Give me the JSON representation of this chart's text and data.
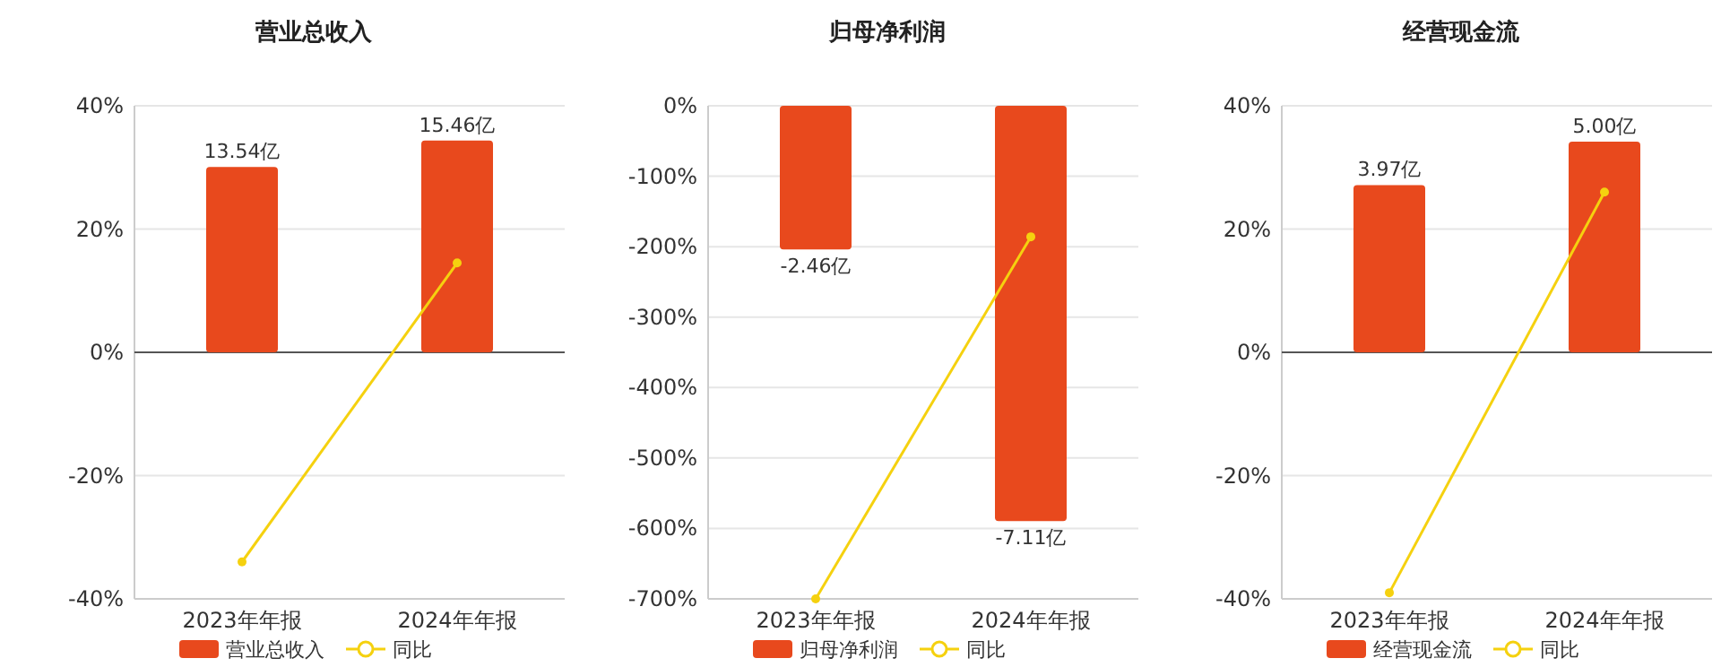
{
  "chart_data": [
    {
      "type": "bar",
      "title": "营业总收入",
      "categories": [
        "2023年年报",
        "2024年年报"
      ],
      "ylim": [
        -40,
        40
      ],
      "yticks": [
        {
          "value": -40,
          "label": "-40%"
        },
        {
          "value": -20,
          "label": "-20%"
        },
        {
          "value": 0,
          "label": "0%"
        },
        {
          "value": 20,
          "label": "20%"
        },
        {
          "value": 40,
          "label": "40%"
        }
      ],
      "y2lim": [
        -18,
        18
      ],
      "grid": "y",
      "legend": "bottom",
      "series": [
        {
          "name": "营业总收入",
          "axis": "y2",
          "color": "#e8491d",
          "values": [
            13.54,
            15.46
          ],
          "value_labels": [
            "13.54亿",
            "15.46亿"
          ]
        },
        {
          "name": "同比",
          "type": "line",
          "color": "#f5d10f",
          "marker": "circle",
          "values": [
            -34,
            14.5
          ]
        }
      ]
    },
    {
      "type": "bar",
      "title": "归母净利润",
      "categories": [
        "2023年年报",
        "2024年年报"
      ],
      "ylim": [
        -700,
        0
      ],
      "yticks": [
        {
          "value": -700,
          "label": "-700%"
        },
        {
          "value": -600,
          "label": "-600%"
        },
        {
          "value": -500,
          "label": "-500%"
        },
        {
          "value": -400,
          "label": "-400%"
        },
        {
          "value": -300,
          "label": "-300%"
        },
        {
          "value": -200,
          "label": "-200%"
        },
        {
          "value": -100,
          "label": "-100%"
        },
        {
          "value": 0,
          "label": "0%"
        }
      ],
      "y2lim": [
        -8.44,
        0
      ],
      "grid": "y",
      "legend": "bottom",
      "series": [
        {
          "name": "归母净利润",
          "axis": "y2",
          "color": "#e8491d",
          "values": [
            -2.46,
            -7.11
          ],
          "value_labels": [
            "-2.46亿",
            "-7.11亿"
          ]
        },
        {
          "name": "同比",
          "type": "line",
          "color": "#f5d10f",
          "marker": "circle",
          "values": [
            -700,
            -186
          ]
        }
      ]
    },
    {
      "type": "bar",
      "title": "经营现金流",
      "categories": [
        "2023年年报",
        "2024年年报"
      ],
      "ylim": [
        -40,
        40
      ],
      "yticks": [
        {
          "value": -40,
          "label": "-40%"
        },
        {
          "value": -20,
          "label": "-20%"
        },
        {
          "value": 0,
          "label": "0%"
        },
        {
          "value": 20,
          "label": "20%"
        },
        {
          "value": 40,
          "label": "40%"
        }
      ],
      "y2lim": [
        -5.85,
        5.85
      ],
      "grid": "y",
      "legend": "bottom",
      "series": [
        {
          "name": "经营现金流",
          "axis": "y2",
          "color": "#e8491d",
          "values": [
            3.97,
            5.0
          ],
          "value_labels": [
            "3.97亿",
            "5.00亿"
          ]
        },
        {
          "name": "同比",
          "type": "line",
          "color": "#f5d10f",
          "marker": "circle",
          "values": [
            -39,
            26
          ]
        }
      ]
    }
  ]
}
